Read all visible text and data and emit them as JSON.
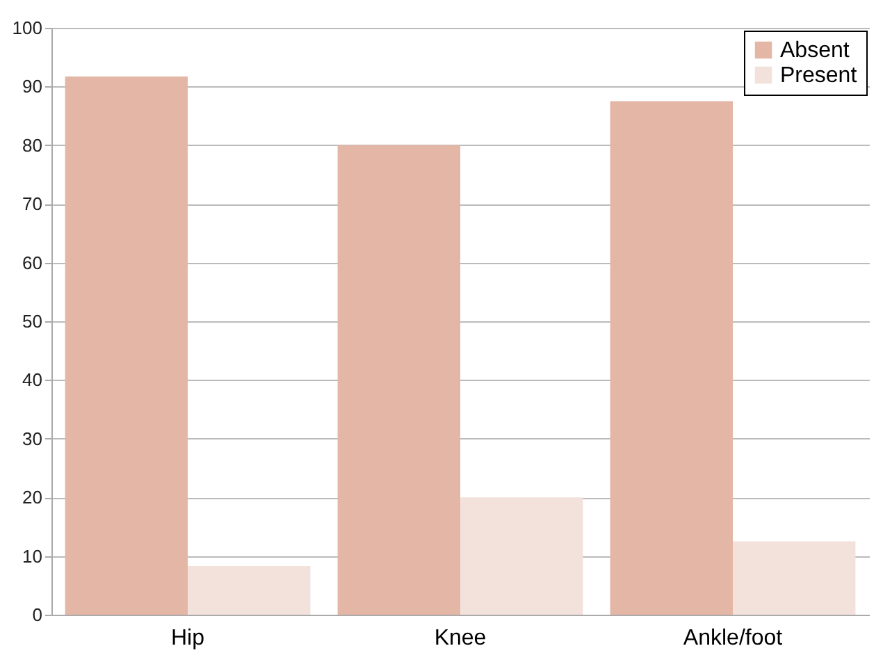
{
  "chart_data": {
    "type": "bar",
    "categories": [
      "Hip",
      "Knee",
      "Ankle/foot"
    ],
    "series": [
      {
        "name": "Absent",
        "color": "#e4b6a6",
        "values": [
          91.7,
          80,
          87.5
        ]
      },
      {
        "name": "Present",
        "color": "#f2e2db",
        "values": [
          8.3,
          20,
          12.5
        ]
      }
    ],
    "ylim": [
      0,
      100
    ],
    "yticks": [
      0,
      10,
      20,
      30,
      40,
      50,
      60,
      70,
      80,
      90,
      100
    ],
    "grid": "y",
    "legend": "top right"
  }
}
